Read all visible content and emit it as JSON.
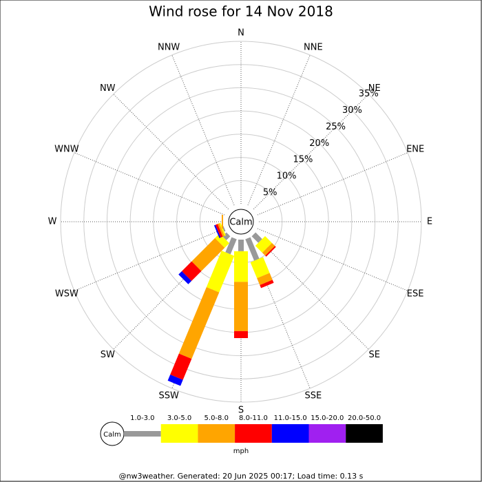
{
  "chart_data": {
    "type": "windrose",
    "title": "Wind rose for 14 Nov 2018",
    "calm_label": "Calm",
    "categories": [
      "N",
      "NNE",
      "NE",
      "ENE",
      "E",
      "ESE",
      "SE",
      "SSE",
      "S",
      "SSW",
      "SW",
      "WSW",
      "W",
      "WNW",
      "NW",
      "NNW"
    ],
    "series": [
      {
        "name": "1.0-3.0",
        "color": "#999999",
        "values": [
          0,
          0,
          0,
          0,
          0,
          0,
          2,
          5,
          2.5,
          3.5,
          1.2,
          0.3,
          0,
          0,
          0,
          0
        ]
      },
      {
        "name": "3.0-5.0",
        "color": "#ffff00",
        "values": [
          0,
          0,
          0,
          0,
          0,
          0,
          2.1,
          3.7,
          6.6,
          8.5,
          1.4,
          0.3,
          0,
          0,
          0,
          0
        ]
      },
      {
        "name": "5.0-8.0",
        "color": "#ffa500",
        "values": [
          0,
          0,
          0,
          0,
          0,
          0,
          0.9,
          1.6,
          10.6,
          15.5,
          7.1,
          0.4,
          0.3,
          0,
          0,
          0
        ]
      },
      {
        "name": "8.0-11.0",
        "color": "#ff0000",
        "values": [
          0,
          0,
          0,
          0,
          0,
          0,
          0.3,
          0.7,
          1.5,
          4.9,
          3,
          0.5,
          0,
          0,
          0,
          0
        ]
      },
      {
        "name": "11.0-15.0",
        "color": "#0000ff",
        "values": [
          0,
          0,
          0,
          0,
          0,
          0,
          0,
          0,
          0,
          1.4,
          1.0,
          0.3,
          0,
          0,
          0,
          0
        ]
      },
      {
        "name": "15.0-20.0",
        "color": "#a020f0",
        "values": [
          0,
          0,
          0,
          0,
          0,
          0,
          0,
          0,
          0,
          0,
          0,
          0,
          0,
          0,
          0,
          0
        ]
      },
      {
        "name": "20.0-50.0",
        "color": "#000000",
        "values": [
          0,
          0,
          0,
          0,
          0,
          0,
          0,
          0,
          0,
          0,
          0,
          0,
          0,
          0,
          0,
          0
        ]
      }
    ],
    "rlim": [
      0,
      35
    ],
    "rticks": [
      {
        "value": 5,
        "label": "5%"
      },
      {
        "value": 10,
        "label": "10%"
      },
      {
        "value": 15,
        "label": "15%"
      },
      {
        "value": 20,
        "label": "20%"
      },
      {
        "value": 25,
        "label": "25%"
      },
      {
        "value": 30,
        "label": "30%"
      },
      {
        "value": 35,
        "label": "35%"
      }
    ],
    "legend_unit": "mph",
    "footer": "@nw3weather.  Generated: 20 Jun 2025 00:17; Load time: 0.13 s"
  }
}
